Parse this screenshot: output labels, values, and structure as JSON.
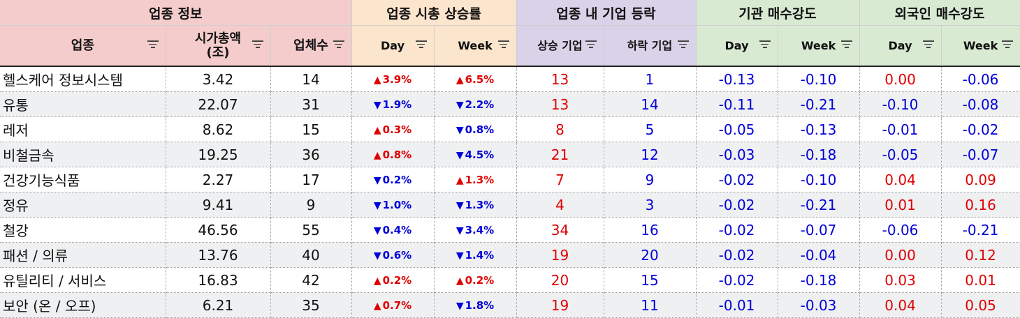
{
  "groups": [
    {
      "label": "업종 정보",
      "color": "pink"
    },
    {
      "label": "업종 시총 상승률",
      "color": "orange"
    },
    {
      "label": "업종 내 기업 등락",
      "color": "purple"
    },
    {
      "label": "기관 매수강도",
      "color": "green"
    },
    {
      "label": "외국인 매수강도",
      "color": "green"
    }
  ],
  "columns": [
    {
      "label": "업종",
      "color": "pink"
    },
    {
      "label": "시가총액\n(조)",
      "color": "pink"
    },
    {
      "label": "업체수",
      "color": "pink"
    },
    {
      "label": "Day",
      "color": "orange"
    },
    {
      "label": "Week",
      "color": "orange"
    },
    {
      "label": "상승 기업",
      "color": "purple"
    },
    {
      "label": "하락 기업",
      "color": "purple"
    },
    {
      "label": "Day",
      "color": "green"
    },
    {
      "label": "Week",
      "color": "green"
    },
    {
      "label": "Day",
      "color": "green"
    },
    {
      "label": "Week",
      "color": "green"
    }
  ],
  "colors": {
    "up": "#e00000",
    "down": "#0000d8",
    "pink": "#f4cccc",
    "orange": "#fce5cd",
    "purple": "#d9d2e9",
    "green": "#d9ead3"
  },
  "rows": [
    {
      "sector": "헬스케어 정보시스템",
      "market_cap": "3.42",
      "companies": "14",
      "day": {
        "dir": "up",
        "value": "3.9%"
      },
      "week": {
        "dir": "up",
        "value": "6.5%"
      },
      "rising": "13",
      "falling": "1",
      "inst_day": "-0.13",
      "inst_week": "-0.10",
      "foreign_day": "0.00",
      "foreign_week": "-0.06"
    },
    {
      "sector": "유통",
      "market_cap": "22.07",
      "companies": "31",
      "day": {
        "dir": "down",
        "value": "1.9%"
      },
      "week": {
        "dir": "down",
        "value": "2.2%"
      },
      "rising": "13",
      "falling": "14",
      "inst_day": "-0.11",
      "inst_week": "-0.21",
      "foreign_day": "-0.10",
      "foreign_week": "-0.08"
    },
    {
      "sector": "레저",
      "market_cap": "8.62",
      "companies": "15",
      "day": {
        "dir": "up",
        "value": "0.3%"
      },
      "week": {
        "dir": "down",
        "value": "0.8%"
      },
      "rising": "8",
      "falling": "5",
      "inst_day": "-0.05",
      "inst_week": "-0.13",
      "foreign_day": "-0.01",
      "foreign_week": "-0.02"
    },
    {
      "sector": "비철금속",
      "market_cap": "19.25",
      "companies": "36",
      "day": {
        "dir": "up",
        "value": "0.8%"
      },
      "week": {
        "dir": "down",
        "value": "4.5%"
      },
      "rising": "21",
      "falling": "12",
      "inst_day": "-0.03",
      "inst_week": "-0.18",
      "foreign_day": "-0.05",
      "foreign_week": "-0.07"
    },
    {
      "sector": "건강기능식품",
      "market_cap": "2.27",
      "companies": "17",
      "day": {
        "dir": "down",
        "value": "0.2%"
      },
      "week": {
        "dir": "up",
        "value": "1.3%"
      },
      "rising": "7",
      "falling": "9",
      "inst_day": "-0.02",
      "inst_week": "-0.10",
      "foreign_day": "0.04",
      "foreign_week": "0.09"
    },
    {
      "sector": "정유",
      "market_cap": "9.41",
      "companies": "9",
      "day": {
        "dir": "down",
        "value": "1.0%"
      },
      "week": {
        "dir": "down",
        "value": "1.3%"
      },
      "rising": "4",
      "falling": "3",
      "inst_day": "-0.02",
      "inst_week": "-0.21",
      "foreign_day": "0.01",
      "foreign_week": "0.16"
    },
    {
      "sector": "철강",
      "market_cap": "46.56",
      "companies": "55",
      "day": {
        "dir": "down",
        "value": "0.4%"
      },
      "week": {
        "dir": "down",
        "value": "3.4%"
      },
      "rising": "34",
      "falling": "16",
      "inst_day": "-0.02",
      "inst_week": "-0.07",
      "foreign_day": "-0.06",
      "foreign_week": "-0.21"
    },
    {
      "sector": "패션 / 의류",
      "market_cap": "13.76",
      "companies": "40",
      "day": {
        "dir": "down",
        "value": "0.6%"
      },
      "week": {
        "dir": "down",
        "value": "1.4%"
      },
      "rising": "19",
      "falling": "20",
      "inst_day": "-0.02",
      "inst_week": "-0.04",
      "foreign_day": "0.00",
      "foreign_week": "0.12"
    },
    {
      "sector": "유틸리티 / 서비스",
      "market_cap": "16.83",
      "companies": "42",
      "day": {
        "dir": "up",
        "value": "0.2%"
      },
      "week": {
        "dir": "up",
        "value": "0.2%"
      },
      "rising": "20",
      "falling": "15",
      "inst_day": "-0.02",
      "inst_week": "-0.18",
      "foreign_day": "0.03",
      "foreign_week": "0.01"
    },
    {
      "sector": "보안 (온 / 오프)",
      "market_cap": "6.21",
      "companies": "35",
      "day": {
        "dir": "up",
        "value": "0.7%"
      },
      "week": {
        "dir": "down",
        "value": "1.8%"
      },
      "rising": "19",
      "falling": "11",
      "inst_day": "-0.01",
      "inst_week": "-0.03",
      "foreign_day": "0.04",
      "foreign_week": "0.05"
    }
  ]
}
